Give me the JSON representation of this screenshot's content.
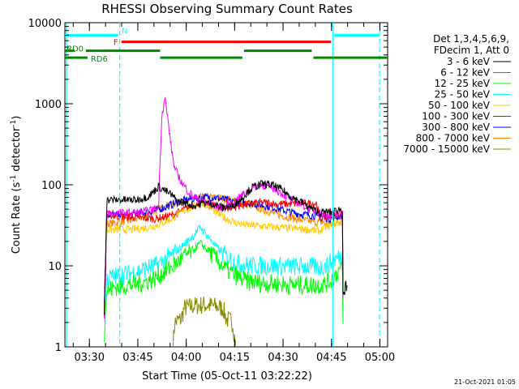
{
  "chart_data": {
    "type": "line",
    "title": "RHESSI Observing Summary Count Rates",
    "xlabel": "Start Time (05-Oct-11 03:22:22)",
    "ylabel_main": "Count Rate (s",
    "ylabel_sup1": "-1",
    "ylabel_mid": " detector",
    "ylabel_sup2": "-1",
    "ylabel_end": ")",
    "yscale": "log",
    "ylim": [
      1,
      10000
    ],
    "xlim_minutes": [
      0,
      100
    ],
    "x_ticks": [
      {
        "label": "03:30",
        "minute": 7.6
      },
      {
        "label": "03:45",
        "minute": 22.6
      },
      {
        "label": "04:00",
        "minute": 37.6
      },
      {
        "label": "04:15",
        "minute": 52.6
      },
      {
        "label": "04:30",
        "minute": 67.6
      },
      {
        "label": "04:45",
        "minute": 82.6
      },
      {
        "label": "05:00",
        "minute": 97.6
      }
    ],
    "y_ticks": [
      {
        "label": "1",
        "value": 1
      },
      {
        "label": "10",
        "value": 10
      },
      {
        "label": "100",
        "value": 100
      },
      {
        "label": "1000",
        "value": 1000
      },
      {
        "label": "10000",
        "value": 10000
      }
    ],
    "legend_header": [
      "Det 1,3,4,5,6,9,",
      "FDecim 1, Att 0"
    ],
    "legend_placement": "right",
    "series": [
      {
        "name": "3 - 6 keV",
        "color": "#000000",
        "points": [
          [
            12.2,
            3
          ],
          [
            13,
            65
          ],
          [
            22,
            65
          ],
          [
            26,
            72
          ],
          [
            29,
            95
          ],
          [
            31,
            85
          ],
          [
            33,
            75
          ],
          [
            35,
            62
          ],
          [
            37,
            60
          ],
          [
            40,
            55
          ],
          [
            43,
            60
          ],
          [
            46,
            58
          ],
          [
            49,
            52
          ],
          [
            52,
            55
          ],
          [
            55,
            70
          ],
          [
            58,
            92
          ],
          [
            61,
            102
          ],
          [
            64,
            100
          ],
          [
            67,
            88
          ],
          [
            70,
            72
          ],
          [
            73,
            62
          ],
          [
            76,
            52
          ],
          [
            79,
            45
          ],
          [
            81,
            46
          ],
          [
            83,
            46
          ],
          [
            85,
            50
          ],
          [
            86,
            48
          ],
          [
            86.2,
            5
          ],
          [
            87.5,
            5
          ]
        ]
      },
      {
        "name": "6 - 12 keV",
        "color": "#ff00ff",
        "points": [
          [
            12.2,
            2
          ],
          [
            13,
            45
          ],
          [
            20,
            45
          ],
          [
            24,
            46
          ],
          [
            29,
            52
          ],
          [
            30,
            700
          ],
          [
            31,
            1200
          ],
          [
            32,
            600
          ],
          [
            33,
            280
          ],
          [
            34,
            160
          ],
          [
            36,
            110
          ],
          [
            38,
            85
          ],
          [
            40,
            70
          ],
          [
            43,
            62
          ],
          [
            46,
            56
          ],
          [
            49,
            52
          ],
          [
            52,
            60
          ],
          [
            55,
            75
          ],
          [
            58,
            92
          ],
          [
            61,
            100
          ],
          [
            64,
            92
          ],
          [
            67,
            80
          ],
          [
            70,
            66
          ],
          [
            73,
            58
          ],
          [
            76,
            50
          ],
          [
            79,
            45
          ],
          [
            81,
            42
          ],
          [
            83,
            43
          ],
          [
            85,
            45
          ],
          [
            86,
            45
          ],
          [
            86.2,
            3
          ]
        ]
      },
      {
        "name": "12 - 25 keV",
        "color": "#00ff00",
        "points": [
          [
            12.2,
            1.5
          ],
          [
            13,
            5
          ],
          [
            16,
            5.5
          ],
          [
            20,
            5.8
          ],
          [
            24,
            6.2
          ],
          [
            28,
            7
          ],
          [
            32,
            9
          ],
          [
            36,
            12
          ],
          [
            40,
            16
          ],
          [
            42,
            19
          ],
          [
            44,
            16
          ],
          [
            47,
            12
          ],
          [
            50,
            9
          ],
          [
            53,
            7.5
          ],
          [
            56,
            6.5
          ],
          [
            60,
            6.2
          ],
          [
            65,
            6
          ],
          [
            70,
            5.8
          ],
          [
            75,
            5.8
          ],
          [
            79,
            5.8
          ],
          [
            81,
            6
          ],
          [
            83,
            7
          ],
          [
            85,
            9
          ],
          [
            86,
            9
          ],
          [
            86.2,
            1.5
          ]
        ]
      },
      {
        "name": "25 - 50 keV",
        "color": "#00ffff",
        "points": [
          [
            12.2,
            2
          ],
          [
            13,
            7
          ],
          [
            16,
            7.5
          ],
          [
            20,
            8
          ],
          [
            24,
            9
          ],
          [
            28,
            10
          ],
          [
            32,
            12.5
          ],
          [
            36,
            17
          ],
          [
            40,
            24
          ],
          [
            42,
            30
          ],
          [
            44,
            24
          ],
          [
            47,
            17
          ],
          [
            50,
            13
          ],
          [
            53,
            11
          ],
          [
            56,
            10.2
          ],
          [
            60,
            10
          ],
          [
            65,
            10
          ],
          [
            70,
            9.8
          ],
          [
            75,
            9.8
          ],
          [
            79,
            9.5
          ],
          [
            81,
            10
          ],
          [
            83,
            11.5
          ],
          [
            85,
            13
          ],
          [
            86,
            13
          ],
          [
            86.2,
            2
          ]
        ]
      },
      {
        "name": "50 - 100 keV",
        "color": "#ffcc00",
        "points": [
          [
            12.2,
            3
          ],
          [
            13,
            28
          ],
          [
            16,
            28
          ],
          [
            20,
            28
          ],
          [
            24,
            29
          ],
          [
            28,
            31
          ],
          [
            32,
            36
          ],
          [
            36,
            45
          ],
          [
            40,
            55
          ],
          [
            42,
            62
          ],
          [
            44,
            55
          ],
          [
            47,
            45
          ],
          [
            50,
            38
          ],
          [
            53,
            34
          ],
          [
            56,
            32
          ],
          [
            60,
            31
          ],
          [
            65,
            30
          ],
          [
            70,
            29
          ],
          [
            75,
            28
          ],
          [
            79,
            27
          ],
          [
            81,
            30
          ],
          [
            83,
            32
          ],
          [
            85,
            34
          ],
          [
            86,
            34
          ],
          [
            86.2,
            3
          ]
        ]
      },
      {
        "name": "100 - 300 keV",
        "color": "#ff0000",
        "points": [
          [
            12.2,
            3
          ],
          [
            13,
            43
          ],
          [
            16,
            41
          ],
          [
            20,
            40
          ],
          [
            24,
            39
          ],
          [
            28,
            38
          ],
          [
            31,
            40
          ],
          [
            33,
            42
          ],
          [
            36,
            47
          ],
          [
            39,
            54
          ],
          [
            42,
            60
          ],
          [
            45,
            57
          ],
          [
            48,
            52
          ],
          [
            51,
            52
          ],
          [
            54,
            55
          ],
          [
            57,
            58
          ],
          [
            60,
            60
          ],
          [
            63,
            60
          ],
          [
            66,
            58
          ],
          [
            70,
            58
          ],
          [
            74,
            59
          ],
          [
            78,
            59
          ],
          [
            79,
            38
          ],
          [
            81,
            40
          ],
          [
            83,
            42
          ],
          [
            85,
            44
          ],
          [
            86,
            44
          ],
          [
            86.2,
            3
          ]
        ]
      },
      {
        "name": "300 - 800 keV",
        "color": "#0000ff",
        "points": [
          [
            12.2,
            3
          ],
          [
            13,
            43
          ],
          [
            16,
            42
          ],
          [
            20,
            42
          ],
          [
            24,
            45
          ],
          [
            28,
            48
          ],
          [
            32,
            55
          ],
          [
            36,
            63
          ],
          [
            40,
            68
          ],
          [
            43,
            70
          ],
          [
            46,
            70
          ],
          [
            50,
            65
          ],
          [
            53,
            60
          ],
          [
            56,
            60
          ],
          [
            59,
            58
          ],
          [
            62,
            55
          ],
          [
            65,
            52
          ],
          [
            68,
            48
          ],
          [
            71,
            45
          ],
          [
            74,
            43
          ],
          [
            77,
            42
          ],
          [
            80,
            40
          ],
          [
            82,
            38
          ],
          [
            84,
            40
          ],
          [
            86,
            42
          ],
          [
            86.2,
            3
          ]
        ]
      },
      {
        "name": "800 - 7000 keV",
        "color": "#ff8800",
        "points": [
          [
            12.2,
            3
          ],
          [
            13,
            33
          ],
          [
            16,
            34
          ],
          [
            20,
            36
          ],
          [
            24,
            40
          ],
          [
            28,
            48
          ],
          [
            32,
            56
          ],
          [
            36,
            63
          ],
          [
            40,
            68
          ],
          [
            43,
            70
          ],
          [
            46,
            70
          ],
          [
            50,
            67
          ],
          [
            53,
            62
          ],
          [
            57,
            56
          ],
          [
            61,
            50
          ],
          [
            65,
            44
          ],
          [
            69,
            40
          ],
          [
            73,
            37
          ],
          [
            77,
            35
          ],
          [
            80,
            34
          ],
          [
            82,
            32
          ],
          [
            84,
            34
          ],
          [
            86,
            36
          ],
          [
            86.2,
            3
          ]
        ]
      },
      {
        "name": "7000 - 15000 keV",
        "color": "#888800",
        "points": [
          [
            33.5,
            1
          ],
          [
            34,
            2
          ],
          [
            36,
            2.2
          ],
          [
            37,
            3
          ],
          [
            40,
            3.2
          ],
          [
            43,
            3.3
          ],
          [
            46,
            3.2
          ],
          [
            49,
            3
          ],
          [
            50,
            2.2
          ],
          [
            52,
            2
          ],
          [
            53,
            1
          ]
        ]
      }
    ],
    "flag_lines": [
      {
        "label": "N",
        "color": "#00ffff",
        "y_value": 7000,
        "segments": [
          [
            0,
            16.5
          ],
          [
            83.5,
            97.5
          ]
        ]
      },
      {
        "label": "F",
        "color": "#ff0000",
        "y_value": 5800,
        "segments": [
          [
            17.5,
            82.5
          ]
        ]
      },
      {
        "label": "RD0",
        "color": "#008800",
        "y_value": 4500,
        "segments": [
          [
            0,
            3
          ],
          [
            6.5,
            29.5
          ],
          [
            55.5,
            76.5
          ]
        ]
      },
      {
        "label": "RD6",
        "color": "#008800",
        "y_value": 3700,
        "segments": [
          [
            0,
            7
          ],
          [
            29.5,
            55
          ],
          [
            77,
            100
          ]
        ]
      }
    ],
    "vertical_markers": [
      {
        "minute": 0.5,
        "color": "#00ffff",
        "style": "solid"
      },
      {
        "minute": 17,
        "color": "#00ffff",
        "style": "dashed"
      },
      {
        "minute": 83,
        "color": "#00ffff",
        "style": "solid"
      },
      {
        "minute": 97.5,
        "color": "#00ffff",
        "style": "dashed"
      }
    ],
    "footer_date": "21-Oct-2021 01:05"
  }
}
